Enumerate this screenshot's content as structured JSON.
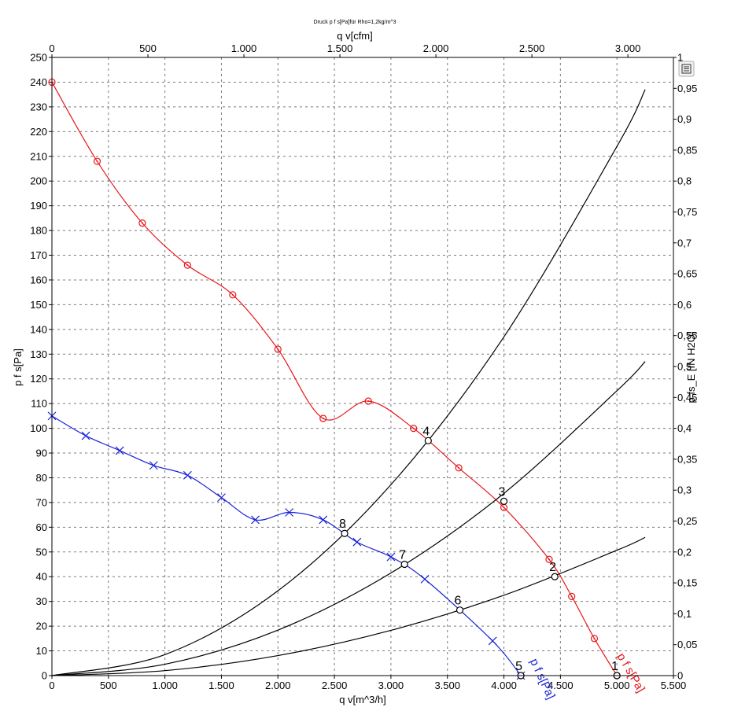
{
  "chart_data": {
    "type": "line",
    "title": "Druck p f s[Pa]für Rho=1,2kg/m^3",
    "xlabel": "q v[m^3/h]",
    "x2label": "q v[cfm]",
    "ylabel": "p f s[Pa]",
    "y2label": "p fs_E [IN H2O]",
    "xlim": [
      0,
      5500
    ],
    "x2lim": [
      0,
      3237.2
    ],
    "ylim": [
      0,
      250
    ],
    "y2lim": [
      0,
      1
    ],
    "grid": true,
    "x_ticks": [
      "0",
      "500",
      "1.000",
      "1.500",
      "2.000",
      "2.500",
      "3.000",
      "3.500",
      "4.000",
      "4.500",
      "5.000",
      "5.500"
    ],
    "x2_ticks": [
      "0",
      "500",
      "1.000",
      "1.500",
      "2.000",
      "2.500",
      "3.000"
    ],
    "y_ticks": [
      "0",
      "10",
      "20",
      "30",
      "40",
      "50",
      "60",
      "70",
      "80",
      "90",
      "100",
      "110",
      "120",
      "130",
      "140",
      "150",
      "160",
      "170",
      "180",
      "190",
      "200",
      "210",
      "220",
      "230",
      "240",
      "250"
    ],
    "y2_ticks": [
      "0",
      "0,05",
      "0,1",
      "0,15",
      "0,2",
      "0,25",
      "0,3",
      "0,35",
      "0,4",
      "0,45",
      "0,5",
      "0,55",
      "0,6",
      "0,65",
      "0,7",
      "0,75",
      "0,8",
      "0,85",
      "0,9",
      "0,95",
      "1"
    ],
    "series": [
      {
        "name": "p f s[Pa]",
        "color": "#e8161b",
        "marker": "circle-dot",
        "x": [
          0,
          400,
          800,
          1200,
          1600,
          2000,
          2400,
          2800,
          3200,
          3600,
          4000,
          4400,
          4600,
          4800,
          5000
        ],
        "y": [
          240,
          208,
          183,
          166,
          154,
          132,
          104,
          111,
          100,
          84,
          68,
          47,
          32,
          15,
          0
        ]
      },
      {
        "name": "p f s[Pa]",
        "color": "#1a22d6",
        "marker": "x",
        "x": [
          0,
          300,
          600,
          900,
          1200,
          1500,
          1800,
          2100,
          2400,
          2700,
          3000,
          3300,
          3900,
          4150
        ],
        "y": [
          105,
          97,
          91,
          85,
          81,
          72,
          63,
          66,
          63,
          54,
          48,
          39,
          14,
          0
        ]
      },
      {
        "name": "",
        "color": "#000000",
        "marker": "none",
        "x": [
          0,
          1000,
          2000,
          3000,
          4000,
          5000,
          5250
        ],
        "y": [
          0,
          8.5,
          34.3,
          77.2,
          137,
          214,
          237
        ]
      },
      {
        "name": "",
        "color": "#000000",
        "marker": "none",
        "x": [
          0,
          1000,
          2000,
          3000,
          4000,
          5000,
          5250
        ],
        "y": [
          0,
          4.6,
          18.4,
          41.5,
          73.7,
          115.2,
          127
        ]
      },
      {
        "name": "",
        "color": "#000000",
        "marker": "none",
        "x": [
          0,
          1000,
          2000,
          3000,
          4000,
          5000,
          5250
        ],
        "y": [
          0,
          2.0,
          8.1,
          18.3,
          32.5,
          50.7,
          55.9
        ]
      }
    ],
    "operating_points": [
      {
        "label": "1",
        "x": 5000,
        "y": 0
      },
      {
        "label": "2",
        "x": 4450,
        "y": 40
      },
      {
        "label": "3",
        "x": 4000,
        "y": 70.5
      },
      {
        "label": "4",
        "x": 3330,
        "y": 95
      },
      {
        "label": "5",
        "x": 4150,
        "y": 0
      },
      {
        "label": "6",
        "x": 3610,
        "y": 26.5
      },
      {
        "label": "7",
        "x": 3120,
        "y": 45
      },
      {
        "label": "8",
        "x": 2590,
        "y": 57.5
      }
    ],
    "curve_labels": [
      {
        "text": "p f s[Pa]",
        "color": "#1a22d6",
        "x": 4230,
        "y": 6,
        "angle": 65
      },
      {
        "text": "p f s[Pa]",
        "color": "#e8161b",
        "x": 5000,
        "y": 8,
        "angle": 60
      }
    ]
  }
}
